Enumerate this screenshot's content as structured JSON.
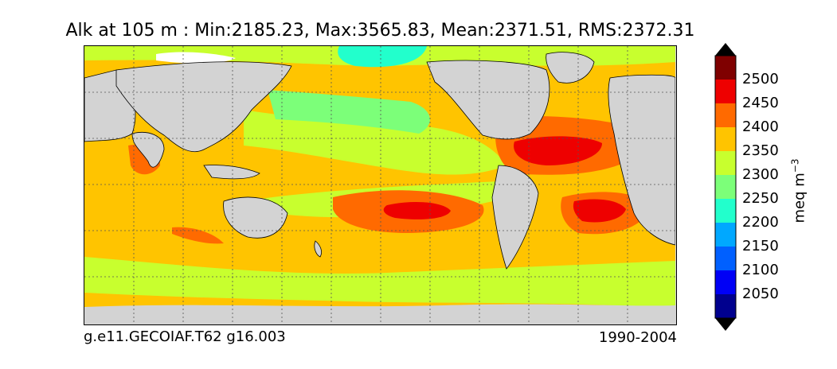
{
  "title": "Alk at 105 m : Min:2185.23, Max:3565.83, Mean:2371.51, RMS:2372.31",
  "footer": {
    "case": "g.e11.GECOIAF.T62 g16.003",
    "period": "1990-2004"
  },
  "colorbar": {
    "label_main": "meq m",
    "label_exp": "−3",
    "ticks": [
      "2500",
      "2450",
      "2400",
      "2350",
      "2300",
      "2250",
      "2200",
      "2150",
      "2100",
      "2050"
    ],
    "colors": [
      "#7f0000",
      "#ee0000",
      "#ff6a00",
      "#ffc400",
      "#c8ff2e",
      "#7cff79",
      "#22ffcc",
      "#00a8ff",
      "#0060ff",
      "#0000f6",
      "#00008e"
    ],
    "over_color": "#000000",
    "under_color": "#000000"
  },
  "map": {
    "land_color": "#d3d3d3",
    "sea_ice_color": "#ffffff",
    "gridlines": "on"
  }
}
